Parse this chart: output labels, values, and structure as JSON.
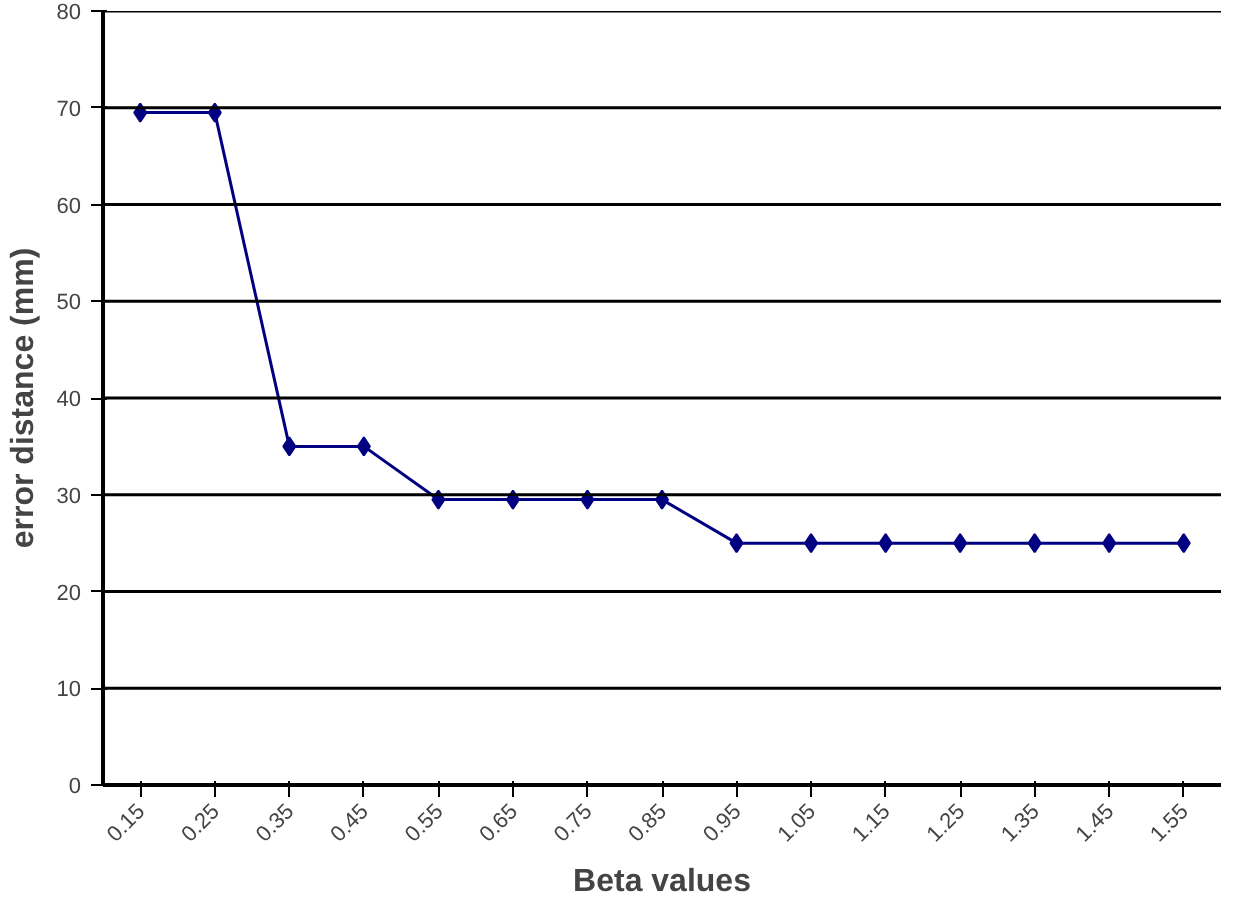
{
  "chart_data": {
    "type": "line",
    "xlabel": "Beta values",
    "ylabel": "error distance (mm)",
    "categories": [
      "0.15",
      "0.25",
      "0.35",
      "0.45",
      "0.55",
      "0.65",
      "0.75",
      "0.85",
      "0.95",
      "1.05",
      "1.15",
      "1.25",
      "1.35",
      "1.45",
      "1.55"
    ],
    "series": [
      {
        "color": "#000080",
        "values": [
          69.5,
          69.5,
          35,
          35,
          29.5,
          29.5,
          29.5,
          29.5,
          25,
          25,
          25,
          25,
          25,
          25,
          25
        ]
      }
    ],
    "ylim": [
      0,
      80
    ],
    "yticks": [
      0,
      10,
      20,
      30,
      40,
      50,
      60,
      70,
      80
    ],
    "grid": "y",
    "marker": "diamond",
    "line_style": "solid"
  }
}
